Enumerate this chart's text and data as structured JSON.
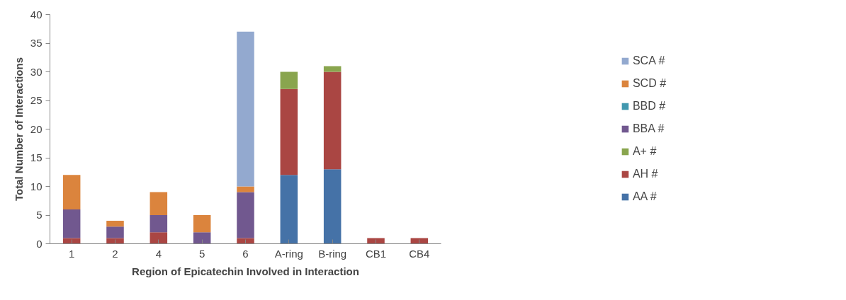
{
  "chart_data": {
    "type": "bar",
    "stacked": true,
    "xlabel": "Region of Epicatechin Involved in Interaction",
    "ylabel": "Total Number of Interactions",
    "categories": [
      "1",
      "2",
      "4",
      "5",
      "6",
      "A-ring",
      "B-ring",
      "CB1",
      "CB4"
    ],
    "series": [
      {
        "name": "AA #",
        "color": "#4572a7",
        "values": [
          0,
          0,
          0,
          0,
          0,
          12,
          13,
          0,
          0
        ]
      },
      {
        "name": "AH #",
        "color": "#aa4643",
        "values": [
          1,
          1,
          2,
          0,
          1,
          15,
          17,
          1,
          1
        ]
      },
      {
        "name": "A+ #",
        "color": "#89a54e",
        "values": [
          0,
          0,
          0,
          0,
          0,
          3,
          1,
          0,
          0
        ]
      },
      {
        "name": "BBA #",
        "color": "#71588f",
        "values": [
          5,
          2,
          3,
          2,
          8,
          0,
          0,
          0,
          0
        ]
      },
      {
        "name": "BBD #",
        "color": "#4198af",
        "values": [
          0,
          0,
          0,
          0,
          0,
          0,
          0,
          0,
          0
        ]
      },
      {
        "name": "SCD #",
        "color": "#db843d",
        "values": [
          6,
          1,
          4,
          3,
          1,
          0,
          0,
          0,
          0
        ]
      },
      {
        "name": "SCA #",
        "color": "#93a9cf",
        "values": [
          0,
          0,
          0,
          0,
          27,
          0,
          0,
          0,
          0
        ]
      }
    ],
    "ylim": [
      0,
      40
    ],
    "yticks": [
      0,
      5,
      10,
      15,
      20,
      25,
      30,
      35,
      40
    ],
    "legend": "right"
  }
}
